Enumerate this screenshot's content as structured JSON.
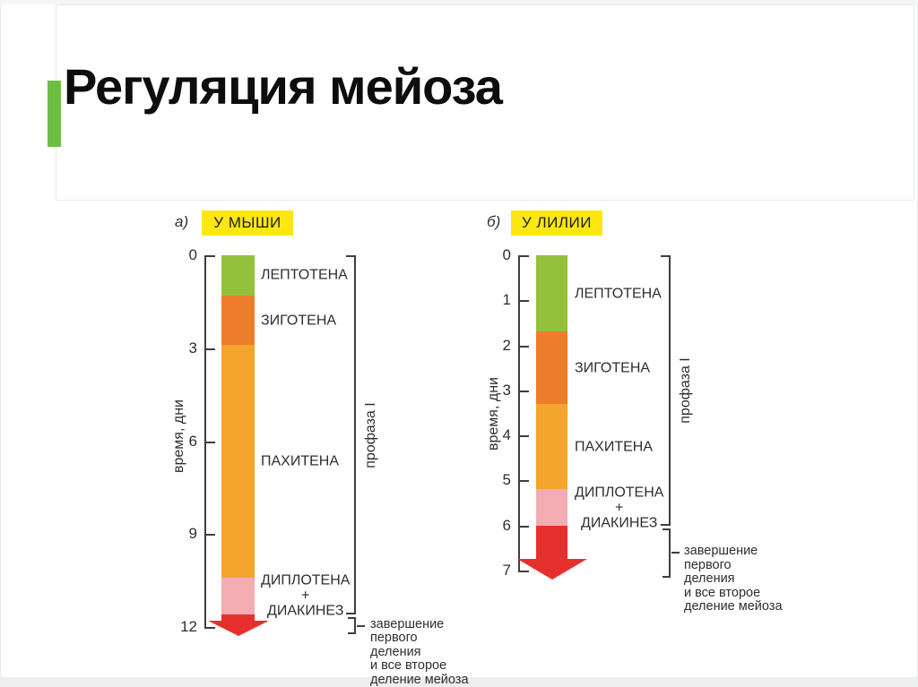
{
  "slide": {
    "title": "Регуляция мейоза",
    "accent_color": "#6CBE45"
  },
  "chart_data": [
    {
      "type": "bar",
      "panel": "а)",
      "header": "У МЫШИ",
      "header_bg": "#FCE712",
      "ylabel": "время, дни",
      "ylim": [
        0,
        12
      ],
      "ticks": [
        0,
        3,
        6,
        9,
        12
      ],
      "grid": false,
      "bracket_label": "профаза I",
      "segments": [
        {
          "label": "ЛЕПТОТЕНА",
          "start": 0,
          "end": 1.3,
          "color": "#94C13D"
        },
        {
          "label": "ЗИГОТЕНА",
          "start": 1.3,
          "end": 2.9,
          "color": "#ED7D2B"
        },
        {
          "label": "ПАХИТЕНА",
          "start": 2.9,
          "end": 10.4,
          "color": "#F3A52E"
        },
        {
          "label": "ДИПЛОТЕНА\n+\nДИАКИНЕЗ",
          "start": 10.4,
          "end": 11.6,
          "color": "#F3ACB1"
        }
      ],
      "arrow": {
        "start": 11.6,
        "end": 12.3,
        "color": "#E6302E",
        "label": "завершение\nпервого\nделения\nи все второе\nделение мейоза"
      }
    },
    {
      "type": "bar",
      "panel": "б)",
      "header": "У ЛИЛИИ",
      "header_bg": "#FCE712",
      "ylabel": "время, дни",
      "ylim": [
        0,
        7
      ],
      "ticks": [
        0,
        1,
        2,
        3,
        4,
        5,
        6,
        7
      ],
      "grid": false,
      "bracket_label": "профаза I",
      "segments": [
        {
          "label": "ЛЕПТОТЕНА",
          "start": 0,
          "end": 1.7,
          "color": "#94C13D"
        },
        {
          "label": "ЗИГОТЕНА",
          "start": 1.7,
          "end": 3.3,
          "color": "#ED7D2B"
        },
        {
          "label": "ПАХИТЕНА",
          "start": 3.3,
          "end": 5.2,
          "color": "#F3A52E"
        },
        {
          "label": "ДИПЛОТЕНА\n+\nДИАКИНЕЗ",
          "start": 5.2,
          "end": 6.0,
          "color": "#F3ACB1"
        }
      ],
      "arrow": {
        "start": 6.0,
        "end": 7.2,
        "color": "#E6302E",
        "label": "завершение\nпервого\nделения\nи все второе\nделение мейоза"
      }
    }
  ]
}
